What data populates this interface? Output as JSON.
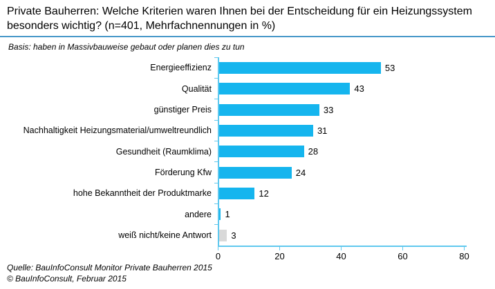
{
  "header": {
    "title": "Private Bauherren: Welche Kriterien waren Ihnen bei der Entscheidung für ein Heizungssystem besonders wichtig? (n=401, Mehrfachnennungen in %)",
    "basis": "Basis: haben in Massivbauweise gebaut oder planen dies zu tun"
  },
  "chart_data": {
    "type": "bar",
    "orientation": "horizontal",
    "title": "Private Bauherren: Welche Kriterien waren Ihnen bei der Entscheidung für ein Heizungssystem besonders wichtig? (n=401, Mehrfachnennungen in %)",
    "categories": [
      "Energieeffizienz",
      "Qualität",
      "günstiger Preis",
      "Nachhaltigkeit Heizungsmaterial/umweltreundlich",
      "Gesundheit (Raumklima)",
      "Förderung Kfw",
      "hohe Bekanntheit der Produktmarke",
      "andere",
      "weiß nicht/keine Antwort"
    ],
    "values": [
      53,
      43,
      33,
      31,
      28,
      24,
      12,
      1,
      3
    ],
    "bar_colors": [
      "#15b5ee",
      "#15b5ee",
      "#15b5ee",
      "#15b5ee",
      "#15b5ee",
      "#15b5ee",
      "#15b5ee",
      "#15b5ee",
      "#d9d9d9"
    ],
    "xlim": [
      0,
      80
    ],
    "xticks": [
      0,
      20,
      40,
      60,
      80
    ],
    "grid": false,
    "data_labels": true,
    "legend": "none"
  },
  "footer": {
    "source_line1": "Quelle: BauInfoConsult Monitor Private Bauherren 2015",
    "source_line2": "© BauInfoConsult, Februar 2015"
  },
  "colors": {
    "bar": "#15b5ee",
    "neutral_bar": "#d9d9d9",
    "axis": "#5fc8ee",
    "title_rule": "#4697c8"
  }
}
